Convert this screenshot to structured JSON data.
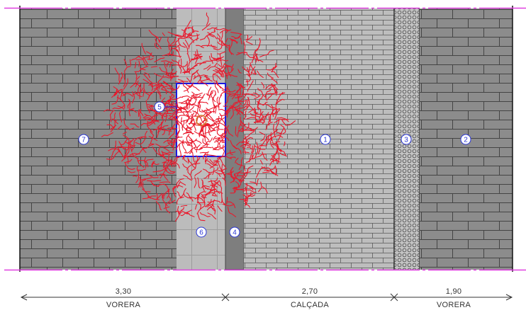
{
  "zones": {
    "z1": {
      "number": "1"
    },
    "z2": {
      "number": "2"
    },
    "z3": {
      "number": "3"
    },
    "z4": {
      "number": "4"
    },
    "z5": {
      "number": "5"
    },
    "z6": {
      "number": "6"
    },
    "z7": {
      "number": "7"
    }
  },
  "dimensions": [
    {
      "value": "3,30",
      "label": "VORERA"
    },
    {
      "value": "2,70",
      "label": "CALÇADA"
    },
    {
      "value": "1,90",
      "label": "VORERA"
    }
  ],
  "colors": {
    "dark_paving": "#8c8c8c",
    "light_paving": "#b8b8b8",
    "curb": "#7e7e7e",
    "brick_lines": "#444444",
    "tree_pit_border": "#1a1ae0",
    "magenta_edge": "#e040e0",
    "canopy_red": "#e8192c",
    "trunk_orange": "#d27a2a",
    "label_blue": "#2a36d6"
  }
}
